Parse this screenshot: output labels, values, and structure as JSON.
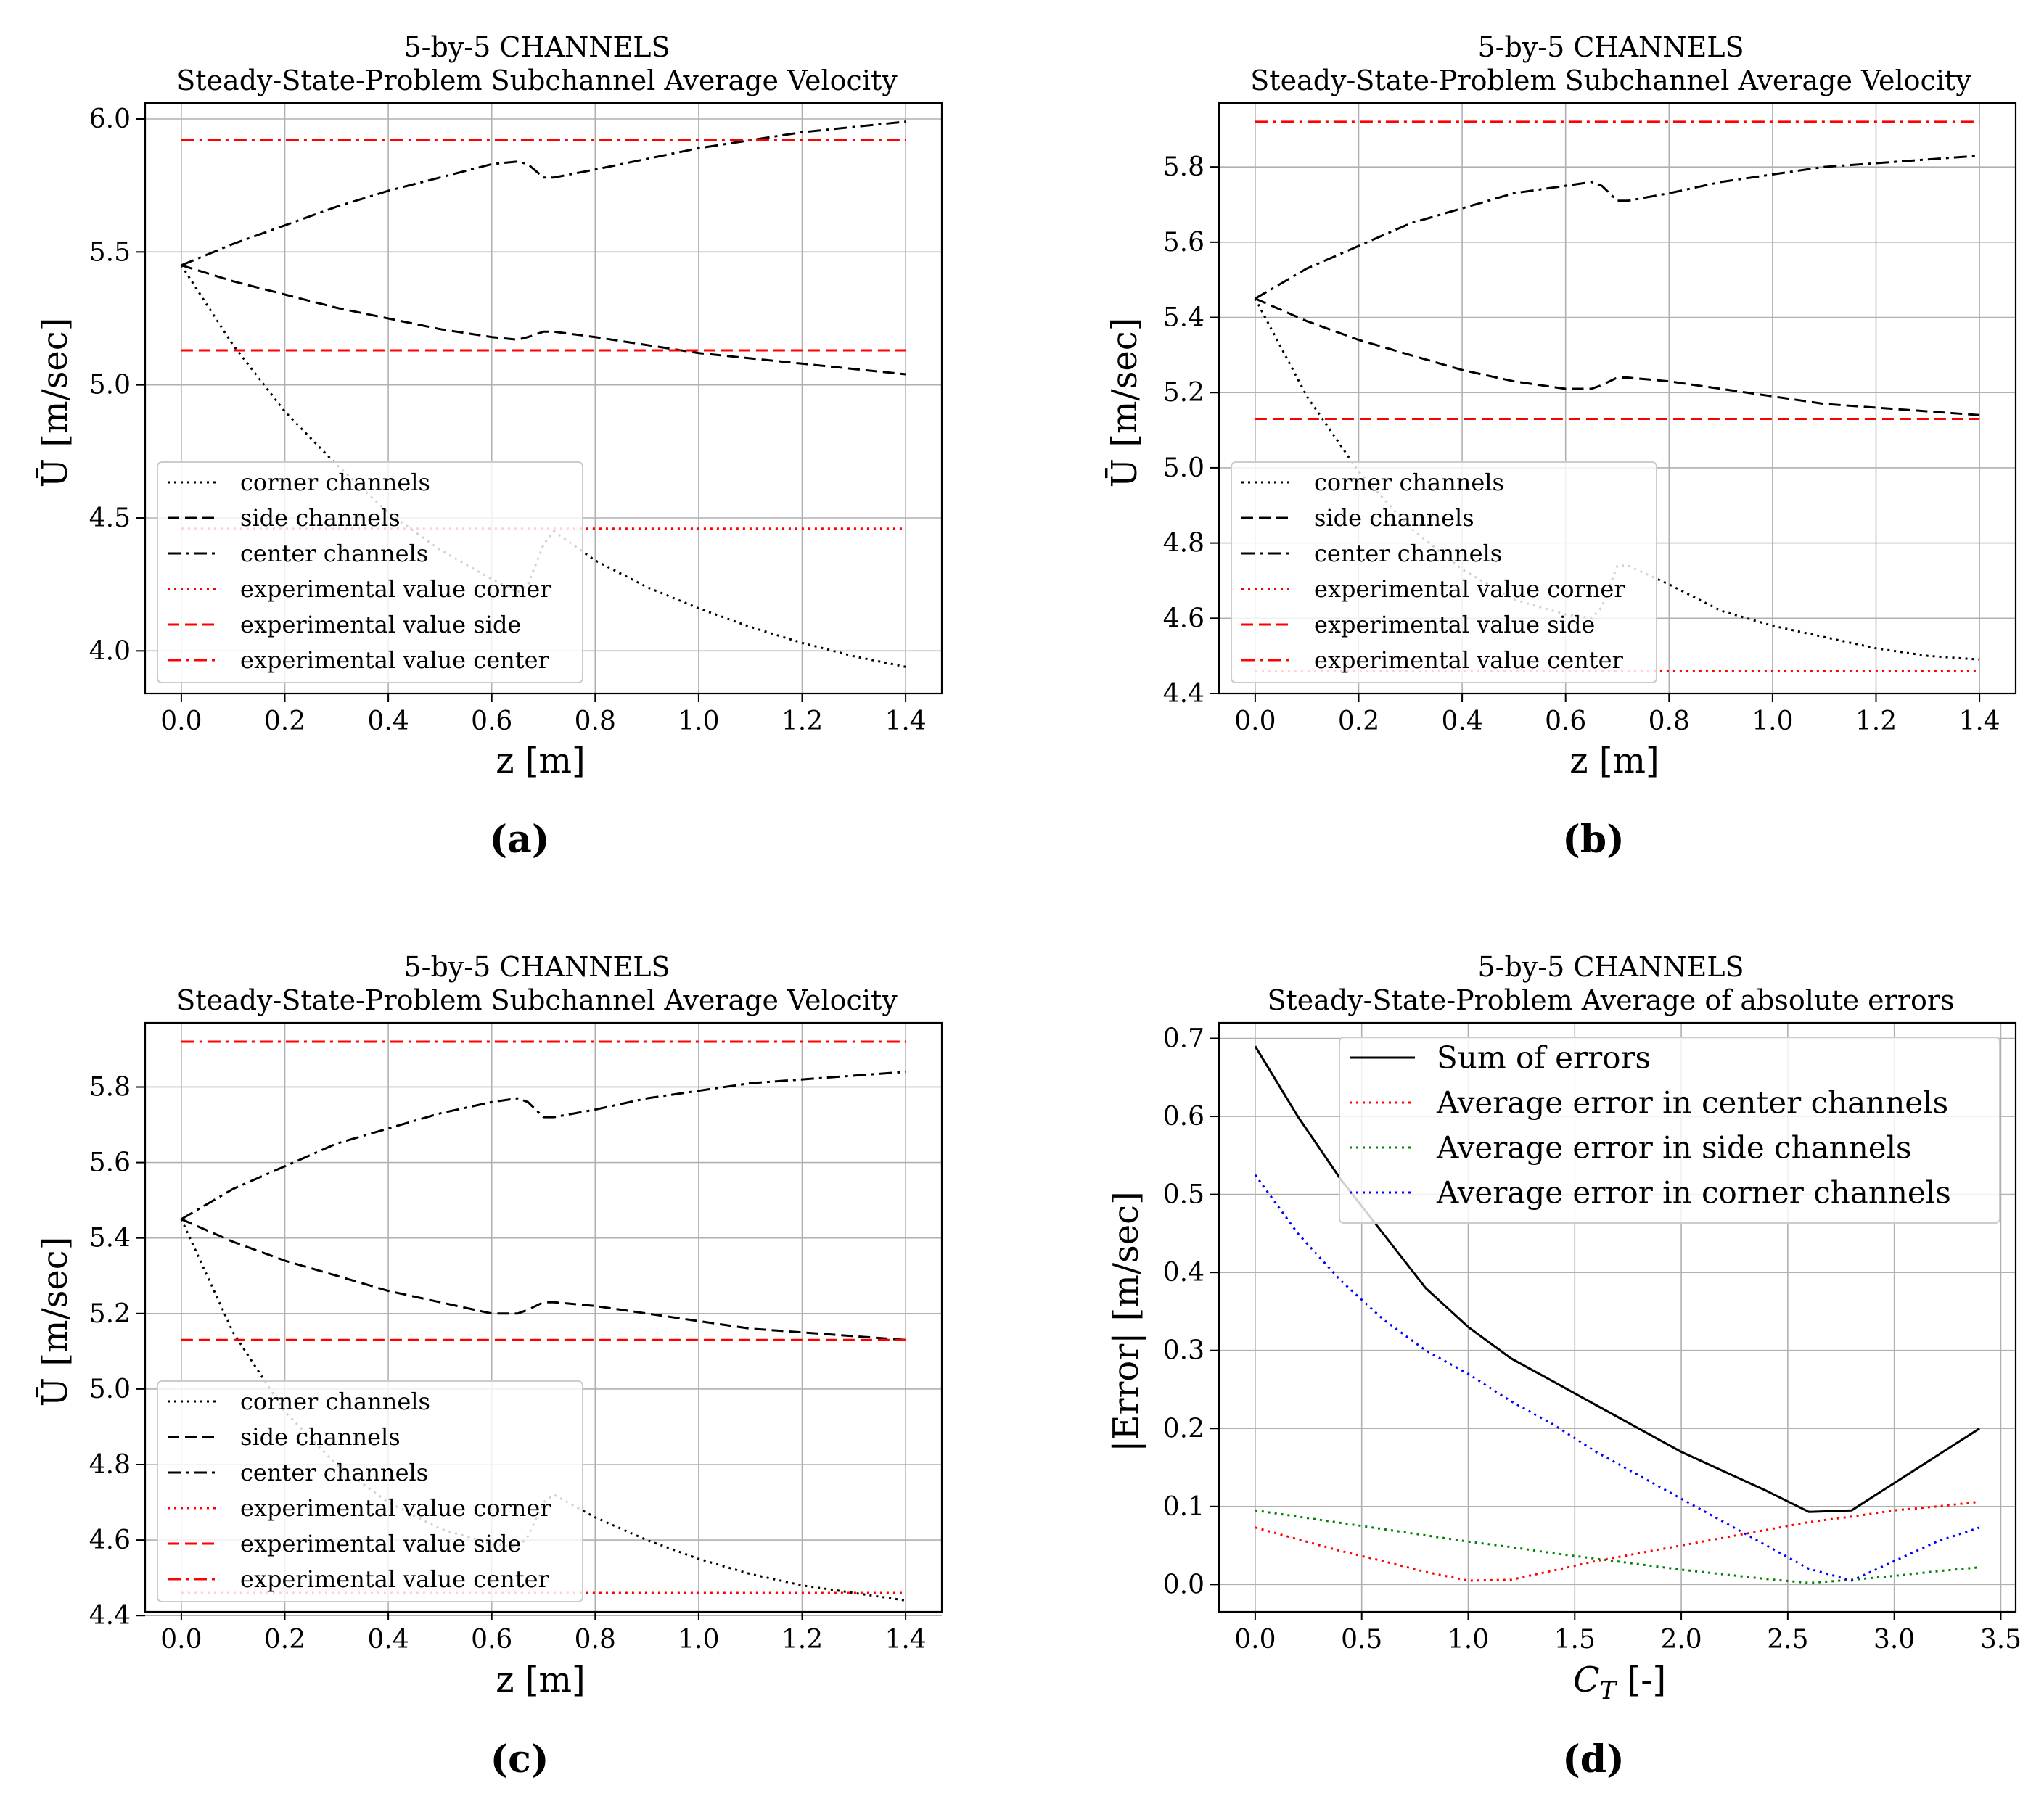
{
  "panel_labels": [
    "(a)",
    "(b)",
    "(c)",
    "(d)"
  ],
  "chart_data": [
    {
      "type": "line",
      "panel": "(a)",
      "title": "5-by-5 CHANNELS",
      "subtitle": "Steady-State-Problem Subchannel Average Velocity",
      "xlabel": "z [m]",
      "ylabel": "Ū [m/sec]",
      "xlim": [
        -0.07,
        1.47
      ],
      "ylim": [
        3.84,
        6.06
      ],
      "xticks": [
        0.0,
        0.2,
        0.4,
        0.6,
        0.8,
        1.0,
        1.2,
        1.4
      ],
      "xtick_labels": [
        "0.0",
        "0.2",
        "0.4",
        "0.6",
        "0.8",
        "1.0",
        "1.2",
        "1.4"
      ],
      "yticks": [
        4.0,
        4.5,
        5.0,
        5.5,
        6.0
      ],
      "ytick_labels": [
        "4.0",
        "4.5",
        "5.0",
        "5.5",
        "6.0"
      ],
      "grid": true,
      "legend_position": "lower-left",
      "series": [
        {
          "name": "corner channels",
          "color": "#000000",
          "dash": "dotted",
          "x": [
            0.0,
            0.1,
            0.2,
            0.3,
            0.4,
            0.5,
            0.6,
            0.65,
            0.67,
            0.7,
            0.72,
            0.8,
            0.9,
            1.0,
            1.1,
            1.2,
            1.3,
            1.4
          ],
          "y": [
            5.45,
            5.15,
            4.9,
            4.7,
            4.52,
            4.38,
            4.27,
            4.22,
            4.25,
            4.4,
            4.45,
            4.34,
            4.24,
            4.16,
            4.09,
            4.03,
            3.98,
            3.94
          ]
        },
        {
          "name": "side channels",
          "color": "#000000",
          "dash": "dashed",
          "x": [
            0.0,
            0.1,
            0.2,
            0.3,
            0.4,
            0.5,
            0.6,
            0.65,
            0.67,
            0.7,
            0.72,
            0.8,
            0.9,
            1.0,
            1.1,
            1.2,
            1.3,
            1.4
          ],
          "y": [
            5.45,
            5.39,
            5.34,
            5.29,
            5.25,
            5.21,
            5.18,
            5.17,
            5.18,
            5.2,
            5.2,
            5.18,
            5.15,
            5.12,
            5.1,
            5.08,
            5.06,
            5.04
          ]
        },
        {
          "name": "center channels",
          "color": "#000000",
          "dash": "dashdot",
          "x": [
            0.0,
            0.1,
            0.2,
            0.3,
            0.4,
            0.5,
            0.6,
            0.65,
            0.67,
            0.7,
            0.72,
            0.8,
            0.9,
            1.0,
            1.1,
            1.2,
            1.3,
            1.4
          ],
          "y": [
            5.45,
            5.53,
            5.6,
            5.67,
            5.73,
            5.78,
            5.83,
            5.84,
            5.83,
            5.78,
            5.78,
            5.81,
            5.85,
            5.89,
            5.92,
            5.95,
            5.97,
            5.99
          ]
        },
        {
          "name": "experimental value corner",
          "color": "#ff0000",
          "dash": "dotted",
          "x": [
            0.0,
            1.4
          ],
          "y": [
            4.46,
            4.46
          ]
        },
        {
          "name": "experimental value side",
          "color": "#ff0000",
          "dash": "dashed",
          "x": [
            0.0,
            1.4
          ],
          "y": [
            5.13,
            5.13
          ]
        },
        {
          "name": "experimental value center",
          "color": "#ff0000",
          "dash": "dashdot",
          "x": [
            0.0,
            1.4
          ],
          "y": [
            5.92,
            5.92
          ]
        }
      ]
    },
    {
      "type": "line",
      "panel": "(b)",
      "title": "5-by-5 CHANNELS",
      "subtitle": "Steady-State-Problem Subchannel Average Velocity",
      "xlabel": "z [m]",
      "ylabel": "Ū [m/sec]",
      "xlim": [
        -0.07,
        1.47
      ],
      "ylim": [
        4.4,
        5.97
      ],
      "xticks": [
        0.0,
        0.2,
        0.4,
        0.6,
        0.8,
        1.0,
        1.2,
        1.4
      ],
      "xtick_labels": [
        "0.0",
        "0.2",
        "0.4",
        "0.6",
        "0.8",
        "1.0",
        "1.2",
        "1.4"
      ],
      "yticks": [
        4.4,
        4.6,
        4.8,
        5.0,
        5.2,
        5.4,
        5.6,
        5.8
      ],
      "ytick_labels": [
        "4.4",
        "4.6",
        "4.8",
        "5.0",
        "5.2",
        "5.4",
        "5.6",
        "5.8"
      ],
      "grid": true,
      "legend_position": "lower-left",
      "series": [
        {
          "name": "corner channels",
          "color": "#000000",
          "dash": "dotted",
          "x": [
            0.0,
            0.1,
            0.2,
            0.3,
            0.4,
            0.5,
            0.6,
            0.65,
            0.67,
            0.7,
            0.72,
            0.8,
            0.9,
            1.0,
            1.1,
            1.2,
            1.3,
            1.4
          ],
          "y": [
            5.45,
            5.19,
            4.99,
            4.84,
            4.73,
            4.65,
            4.61,
            4.6,
            4.63,
            4.74,
            4.74,
            4.69,
            4.62,
            4.58,
            4.55,
            4.52,
            4.5,
            4.49
          ]
        },
        {
          "name": "side channels",
          "color": "#000000",
          "dash": "dashed",
          "x": [
            0.0,
            0.1,
            0.2,
            0.3,
            0.4,
            0.5,
            0.6,
            0.65,
            0.67,
            0.7,
            0.72,
            0.8,
            0.9,
            1.0,
            1.1,
            1.2,
            1.3,
            1.4
          ],
          "y": [
            5.45,
            5.39,
            5.34,
            5.3,
            5.26,
            5.23,
            5.21,
            5.21,
            5.22,
            5.24,
            5.24,
            5.23,
            5.21,
            5.19,
            5.17,
            5.16,
            5.15,
            5.14
          ]
        },
        {
          "name": "center channels",
          "color": "#000000",
          "dash": "dashdot",
          "x": [
            0.0,
            0.1,
            0.2,
            0.3,
            0.4,
            0.5,
            0.6,
            0.65,
            0.67,
            0.7,
            0.72,
            0.8,
            0.9,
            1.0,
            1.1,
            1.2,
            1.3,
            1.4
          ],
          "y": [
            5.45,
            5.53,
            5.59,
            5.65,
            5.69,
            5.73,
            5.75,
            5.76,
            5.75,
            5.71,
            5.71,
            5.73,
            5.76,
            5.78,
            5.8,
            5.81,
            5.82,
            5.83
          ]
        },
        {
          "name": "experimental value corner",
          "color": "#ff0000",
          "dash": "dotted",
          "x": [
            0.0,
            1.4
          ],
          "y": [
            4.46,
            4.46
          ]
        },
        {
          "name": "experimental value side",
          "color": "#ff0000",
          "dash": "dashed",
          "x": [
            0.0,
            1.4
          ],
          "y": [
            5.13,
            5.13
          ]
        },
        {
          "name": "experimental value center",
          "color": "#ff0000",
          "dash": "dashdot",
          "x": [
            0.0,
            1.4
          ],
          "y": [
            5.92,
            5.92
          ]
        }
      ]
    },
    {
      "type": "line",
      "panel": "(c)",
      "title": "5-by-5 CHANNELS",
      "subtitle": "Steady-State-Problem Subchannel Average Velocity",
      "xlabel": "z [m]",
      "ylabel": "Ū [m/sec]",
      "xlim": [
        -0.07,
        1.47
      ],
      "ylim": [
        4.41,
        5.97
      ],
      "xticks": [
        0.0,
        0.2,
        0.4,
        0.6,
        0.8,
        1.0,
        1.2,
        1.4
      ],
      "xtick_labels": [
        "0.0",
        "0.2",
        "0.4",
        "0.6",
        "0.8",
        "1.0",
        "1.2",
        "1.4"
      ],
      "yticks": [
        4.4,
        4.6,
        4.8,
        5.0,
        5.2,
        5.4,
        5.6,
        5.8
      ],
      "ytick_labels": [
        "4.4",
        "4.6",
        "4.8",
        "5.0",
        "5.2",
        "5.4",
        "5.6",
        "5.8"
      ],
      "grid": true,
      "legend_position": "lower-left",
      "series": [
        {
          "name": "corner channels",
          "color": "#000000",
          "dash": "dotted",
          "x": [
            0.0,
            0.1,
            0.2,
            0.3,
            0.4,
            0.5,
            0.6,
            0.65,
            0.67,
            0.7,
            0.72,
            0.8,
            0.9,
            1.0,
            1.1,
            1.2,
            1.3,
            1.4
          ],
          "y": [
            5.45,
            5.15,
            4.94,
            4.8,
            4.7,
            4.63,
            4.59,
            4.58,
            4.61,
            4.7,
            4.72,
            4.66,
            4.6,
            4.55,
            4.51,
            4.48,
            4.46,
            4.44
          ]
        },
        {
          "name": "side channels",
          "color": "#000000",
          "dash": "dashed",
          "x": [
            0.0,
            0.1,
            0.2,
            0.3,
            0.4,
            0.5,
            0.6,
            0.65,
            0.67,
            0.7,
            0.72,
            0.8,
            0.9,
            1.0,
            1.1,
            1.2,
            1.3,
            1.4
          ],
          "y": [
            5.45,
            5.39,
            5.34,
            5.3,
            5.26,
            5.23,
            5.2,
            5.2,
            5.21,
            5.23,
            5.23,
            5.22,
            5.2,
            5.18,
            5.16,
            5.15,
            5.14,
            5.13
          ]
        },
        {
          "name": "center channels",
          "color": "#000000",
          "dash": "dashdot",
          "x": [
            0.0,
            0.1,
            0.2,
            0.3,
            0.4,
            0.5,
            0.6,
            0.65,
            0.67,
            0.7,
            0.72,
            0.8,
            0.9,
            1.0,
            1.1,
            1.2,
            1.3,
            1.4
          ],
          "y": [
            5.45,
            5.53,
            5.59,
            5.65,
            5.69,
            5.73,
            5.76,
            5.77,
            5.76,
            5.72,
            5.72,
            5.74,
            5.77,
            5.79,
            5.81,
            5.82,
            5.83,
            5.84
          ]
        },
        {
          "name": "experimental value corner",
          "color": "#ff0000",
          "dash": "dotted",
          "x": [
            0.0,
            1.4
          ],
          "y": [
            4.46,
            4.46
          ]
        },
        {
          "name": "experimental value side",
          "color": "#ff0000",
          "dash": "dashed",
          "x": [
            0.0,
            1.4
          ],
          "y": [
            5.13,
            5.13
          ]
        },
        {
          "name": "experimental value center",
          "color": "#ff0000",
          "dash": "dashdot",
          "x": [
            0.0,
            1.4
          ],
          "y": [
            5.92,
            5.92
          ]
        }
      ]
    },
    {
      "type": "line",
      "panel": "(d)",
      "title": "5-by-5 CHANNELS",
      "subtitle": "Steady-State-Problem  Average of absolute errors",
      "xlabel": "C_T [-]",
      "ylabel": "|Error| [m/sec]",
      "xlim": [
        -0.17,
        3.57
      ],
      "ylim": [
        -0.035,
        0.72
      ],
      "xticks": [
        0.0,
        0.5,
        1.0,
        1.5,
        2.0,
        2.5,
        3.0,
        3.5
      ],
      "xtick_labels": [
        "0.0",
        "0.5",
        "1.0",
        "1.5",
        "2.0",
        "2.5",
        "3.0",
        "3.5"
      ],
      "yticks": [
        0.0,
        0.1,
        0.2,
        0.3,
        0.4,
        0.5,
        0.6,
        0.7
      ],
      "ytick_labels": [
        "0.0",
        "0.1",
        "0.2",
        "0.3",
        "0.4",
        "0.5",
        "0.6",
        "0.7"
      ],
      "grid": true,
      "legend_position": "upper-right",
      "series": [
        {
          "name": "Sum of errors",
          "color": "#000000",
          "dash": "solid",
          "x": [
            0.0,
            0.2,
            0.4,
            0.6,
            0.8,
            1.0,
            1.2,
            1.4,
            1.6,
            1.8,
            2.0,
            2.2,
            2.4,
            2.6,
            2.8,
            3.0,
            3.2,
            3.4
          ],
          "y": [
            0.69,
            0.6,
            0.52,
            0.45,
            0.38,
            0.33,
            0.29,
            0.26,
            0.23,
            0.2,
            0.17,
            0.145,
            0.12,
            0.093,
            0.095,
            0.13,
            0.165,
            0.2
          ]
        },
        {
          "name": "Average error in center channels",
          "color": "#ff0000",
          "dash": "dotted",
          "x": [
            0.0,
            0.2,
            0.4,
            0.6,
            0.8,
            1.0,
            1.2,
            1.4,
            1.6,
            1.8,
            2.0,
            2.2,
            2.4,
            2.6,
            2.8,
            3.0,
            3.2,
            3.4
          ],
          "y": [
            0.073,
            0.058,
            0.043,
            0.03,
            0.016,
            0.005,
            0.006,
            0.018,
            0.03,
            0.04,
            0.05,
            0.06,
            0.07,
            0.08,
            0.087,
            0.095,
            0.1,
            0.106
          ]
        },
        {
          "name": "Average error in side channels",
          "color": "#008000",
          "dash": "dotted",
          "x": [
            0.0,
            0.2,
            0.4,
            0.6,
            0.8,
            1.0,
            1.2,
            1.4,
            1.6,
            1.8,
            2.0,
            2.2,
            2.4,
            2.6,
            2.8,
            3.0,
            3.2,
            3.4
          ],
          "y": [
            0.095,
            0.087,
            0.079,
            0.071,
            0.063,
            0.055,
            0.048,
            0.04,
            0.033,
            0.026,
            0.019,
            0.013,
            0.007,
            0.002,
            0.006,
            0.011,
            0.017,
            0.022
          ]
        },
        {
          "name": "Average error in corner channels",
          "color": "#0000ff",
          "dash": "dotted",
          "x": [
            0.0,
            0.2,
            0.4,
            0.6,
            0.8,
            1.0,
            1.2,
            1.4,
            1.6,
            1.8,
            2.0,
            2.2,
            2.4,
            2.6,
            2.8,
            3.0,
            3.2,
            3.4
          ],
          "y": [
            0.525,
            0.45,
            0.39,
            0.34,
            0.3,
            0.27,
            0.235,
            0.205,
            0.17,
            0.14,
            0.11,
            0.08,
            0.05,
            0.02,
            0.005,
            0.03,
            0.055,
            0.073
          ]
        }
      ]
    }
  ]
}
